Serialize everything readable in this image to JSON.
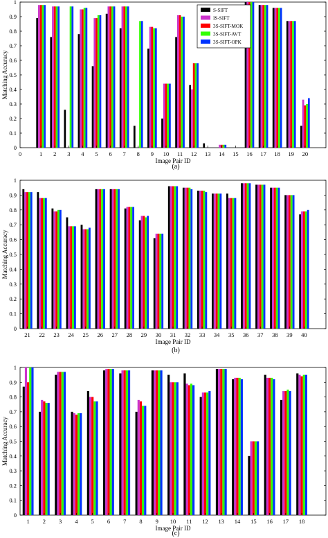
{
  "chart_data": [
    {
      "type": "bar",
      "panel_label": "(a)",
      "xlabel": "Image Pair ID",
      "ylabel": "Matching Accuracy",
      "ylim": [
        0,
        1
      ],
      "yticks": [
        "0",
        "0.1",
        "0.2",
        "0.3",
        "0.4",
        "0.5",
        "0.6",
        "0.7",
        "0.8",
        "0.9",
        "1"
      ],
      "x_zero_label": "0",
      "legend_position": "top-right",
      "categories": [
        "1",
        "2",
        "3",
        "4",
        "5",
        "6",
        "7",
        "8",
        "9",
        "10",
        "11",
        "12",
        "13",
        "14",
        "15",
        "16",
        "17",
        "18",
        "19",
        "20"
      ],
      "series": [
        {
          "name": "S-SIFT",
          "color": "#000000",
          "values": [
            0.89,
            0.76,
            0.26,
            0.78,
            0.56,
            0.92,
            0.82,
            0.15,
            0.68,
            0.2,
            0.76,
            0.43,
            0.03,
            0.0,
            0.0,
            1.0,
            0.98,
            0.96,
            0.87,
            0.15
          ]
        },
        {
          "name": "IS-SIFT",
          "color": "#cc33cc",
          "values": [
            0.98,
            0.97,
            0.0,
            0.95,
            0.89,
            0.97,
            0.97,
            0.0,
            0.83,
            0.44,
            0.91,
            0.4,
            0.0,
            0.02,
            0.0,
            1.0,
            0.98,
            0.96,
            0.87,
            0.33
          ]
        },
        {
          "name": "3S-SIFT-MOK",
          "color": "#ff0000",
          "values": [
            0.98,
            0.97,
            0.0,
            0.95,
            0.89,
            0.97,
            0.97,
            0.0,
            0.83,
            0.44,
            0.91,
            0.58,
            0.0,
            0.02,
            0.0,
            1.0,
            0.98,
            0.96,
            0.87,
            0.29
          ]
        },
        {
          "name": "3S-SIFT-AVT",
          "color": "#33ff00",
          "values": [
            0.98,
            0.97,
            0.97,
            0.96,
            0.91,
            0.97,
            0.97,
            0.87,
            0.82,
            0.44,
            0.9,
            0.58,
            0.0,
            0.02,
            0.0,
            1.0,
            0.98,
            0.96,
            0.87,
            0.3
          ]
        },
        {
          "name": "3S-SIFT-OPK",
          "color": "#0033ff",
          "values": [
            0.98,
            0.97,
            0.97,
            0.96,
            0.91,
            0.97,
            0.97,
            0.87,
            0.82,
            0.44,
            0.9,
            0.58,
            0.0,
            0.02,
            0.0,
            1.0,
            0.98,
            0.96,
            0.87,
            0.34
          ]
        }
      ]
    },
    {
      "type": "bar",
      "panel_label": "(b)",
      "xlabel": "Image Pair ID",
      "ylabel": "Matching Accuracy",
      "ylim": [
        0,
        1
      ],
      "yticks": [
        "0",
        "0.1",
        "0.2",
        "0.3",
        "0.4",
        "0.5",
        "0.6",
        "0.7",
        "0.8",
        "0.9",
        "1"
      ],
      "categories": [
        "21",
        "22",
        "23",
        "24",
        "25",
        "26",
        "27",
        "28",
        "29",
        "30",
        "31",
        "32",
        "33",
        "34",
        "35",
        "36",
        "37",
        "38",
        "39",
        "40"
      ],
      "series": [
        {
          "name": "S-SIFT",
          "color": "#000000",
          "values": [
            0.94,
            0.92,
            0.81,
            0.75,
            0.7,
            0.94,
            0.94,
            0.81,
            0.73,
            0.61,
            0.96,
            0.95,
            0.93,
            0.91,
            0.91,
            0.98,
            0.97,
            0.95,
            0.9,
            0.77
          ]
        },
        {
          "name": "IS-SIFT",
          "color": "#cc33cc",
          "values": [
            0.92,
            0.88,
            0.79,
            0.69,
            0.67,
            0.94,
            0.94,
            0.82,
            0.76,
            0.64,
            0.96,
            0.95,
            0.93,
            0.91,
            0.88,
            0.98,
            0.97,
            0.95,
            0.9,
            0.79
          ]
        },
        {
          "name": "3S-SIFT-MOK",
          "color": "#ff0000",
          "values": [
            0.92,
            0.88,
            0.79,
            0.69,
            0.67,
            0.94,
            0.94,
            0.82,
            0.76,
            0.64,
            0.96,
            0.95,
            0.93,
            0.91,
            0.88,
            0.98,
            0.97,
            0.95,
            0.9,
            0.79
          ]
        },
        {
          "name": "3S-SIFT-AVT",
          "color": "#33ff00",
          "values": [
            0.92,
            0.88,
            0.8,
            0.69,
            0.67,
            0.94,
            0.94,
            0.82,
            0.75,
            0.64,
            0.96,
            0.95,
            0.93,
            0.91,
            0.88,
            0.98,
            0.97,
            0.95,
            0.9,
            0.79
          ]
        },
        {
          "name": "3S-SIFT-OPK",
          "color": "#0033ff",
          "values": [
            0.92,
            0.88,
            0.8,
            0.69,
            0.68,
            0.94,
            0.94,
            0.82,
            0.76,
            0.64,
            0.96,
            0.94,
            0.92,
            0.91,
            0.88,
            0.98,
            0.97,
            0.95,
            0.9,
            0.8
          ]
        }
      ]
    },
    {
      "type": "bar",
      "panel_label": "(c)",
      "xlabel": "Image Pair ID",
      "ylabel": "Matching Accuracy",
      "ylim": [
        0,
        1
      ],
      "yticks": [
        "0",
        "0.1",
        "0.2",
        "0.3",
        "0.4",
        "0.5",
        "0.6",
        "0.7",
        "0.8",
        "0.9",
        "1"
      ],
      "categories": [
        "1",
        "2",
        "3",
        "4",
        "5",
        "6",
        "7",
        "8",
        "9",
        "10",
        "11",
        "12",
        "13",
        "14",
        "15",
        "16",
        "17",
        "18"
      ],
      "series": [
        {
          "name": "S-SIFT",
          "color": "#000000",
          "values": [
            0.87,
            0.7,
            0.95,
            0.7,
            0.84,
            0.98,
            0.96,
            0.7,
            0.98,
            0.95,
            0.96,
            0.8,
            0.99,
            0.92,
            0.4,
            0.95,
            0.78,
            0.96
          ]
        },
        {
          "name": "IS-SIFT",
          "color": "#cc33cc",
          "values": [
            1.0,
            0.78,
            0.97,
            0.69,
            0.8,
            0.99,
            0.98,
            0.78,
            0.98,
            0.9,
            0.89,
            0.83,
            0.99,
            0.93,
            0.5,
            0.93,
            0.84,
            0.95
          ]
        },
        {
          "name": "3S-SIFT-MOK",
          "color": "#ff0000",
          "values": [
            0.9,
            0.77,
            0.97,
            0.68,
            0.8,
            0.99,
            0.98,
            0.77,
            0.98,
            0.9,
            0.88,
            0.83,
            0.99,
            0.93,
            0.5,
            0.93,
            0.84,
            0.94
          ]
        },
        {
          "name": "3S-SIFT-AVT",
          "color": "#33ff00",
          "values": [
            1.0,
            0.76,
            0.97,
            0.69,
            0.77,
            0.99,
            0.98,
            0.74,
            0.98,
            0.9,
            0.89,
            0.83,
            0.99,
            0.93,
            0.5,
            0.93,
            0.85,
            0.95
          ]
        },
        {
          "name": "3S-SIFT-OPK",
          "color": "#0033ff",
          "values": [
            1.0,
            0.76,
            0.97,
            0.69,
            0.77,
            0.99,
            0.98,
            0.74,
            0.98,
            0.9,
            0.88,
            0.84,
            0.99,
            0.92,
            0.5,
            0.92,
            0.84,
            0.95
          ]
        }
      ]
    }
  ]
}
